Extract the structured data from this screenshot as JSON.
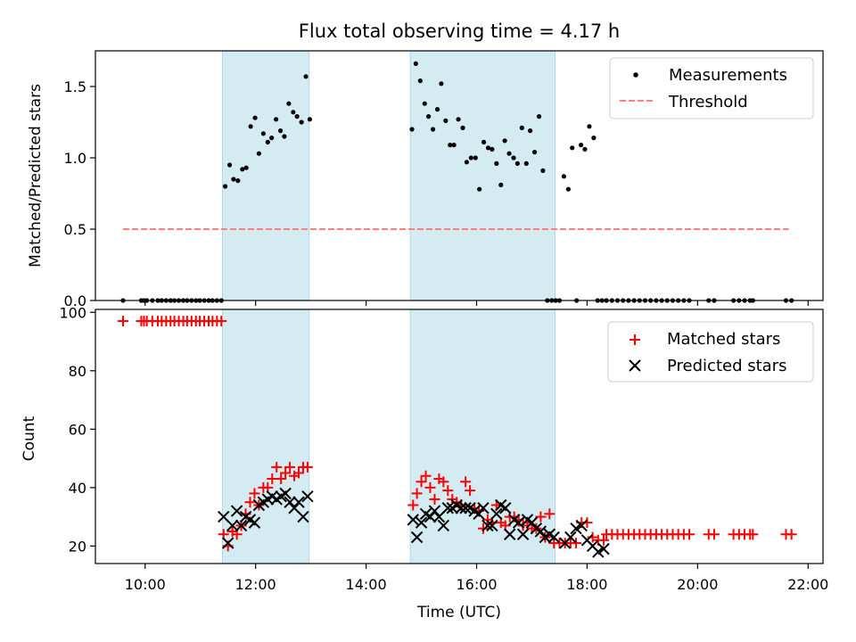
{
  "figure": {
    "title": "Flux total observing time = 4.17 h"
  },
  "chart_data": [
    {
      "type": "scatter",
      "ylabel": "Matched/Predicted stars",
      "xlim": [
        9.1,
        22.27
      ],
      "ylim": [
        0.0,
        1.75
      ],
      "yticks": [
        0.0,
        0.5,
        1.0,
        1.5
      ],
      "ytick_labels": [
        "0.0",
        "0.5",
        "1.0",
        "1.5"
      ],
      "xticks": [
        10,
        12,
        14,
        16,
        18,
        20,
        22
      ],
      "legend_position": "top-right",
      "shaded_spans": [
        [
          11.4,
          12.97
        ],
        [
          14.8,
          17.42
        ]
      ],
      "shade_color": "#add8e6",
      "series": [
        {
          "name": "Measurements",
          "marker": "dot",
          "color": "#000000",
          "x": [
            9.6,
            9.93,
            9.98,
            10.03,
            10.13,
            10.23,
            10.3,
            10.38,
            10.46,
            10.53,
            10.61,
            10.69,
            10.76,
            10.84,
            10.92,
            10.99,
            11.07,
            11.15,
            11.22,
            11.3,
            11.38,
            11.45,
            11.53,
            11.6,
            11.68,
            11.76,
            11.83,
            11.91,
            11.99,
            12.06,
            12.14,
            12.22,
            12.29,
            12.37,
            12.45,
            12.52,
            12.6,
            12.68,
            12.75,
            12.83,
            12.91,
            12.98,
            14.83,
            14.9,
            14.98,
            15.06,
            15.13,
            15.21,
            15.29,
            15.36,
            15.44,
            15.52,
            15.59,
            15.67,
            15.75,
            15.82,
            15.9,
            15.98,
            16.05,
            16.13,
            16.21,
            16.28,
            16.36,
            16.44,
            16.51,
            16.59,
            16.67,
            16.74,
            16.82,
            16.9,
            16.97,
            17.05,
            17.13,
            17.2,
            17.28,
            17.36,
            17.43,
            17.5,
            17.58,
            17.66,
            17.73,
            17.81,
            17.89,
            17.96,
            18.04,
            18.12,
            18.19,
            18.27,
            18.35,
            18.35,
            18.45,
            18.55,
            18.65,
            18.75,
            18.85,
            18.95,
            19.05,
            19.15,
            19.25,
            19.35,
            19.45,
            19.55,
            19.65,
            19.75,
            19.85,
            20.2,
            20.3,
            20.65,
            20.75,
            20.85,
            20.95,
            21.0,
            21.6,
            21.7
          ],
          "y": [
            0,
            0,
            0,
            0,
            0,
            0,
            0,
            0,
            0,
            0,
            0,
            0,
            0,
            0,
            0,
            0,
            0,
            0,
            0,
            0,
            0,
            0.8,
            0.95,
            0.85,
            0.84,
            0.92,
            0.93,
            1.22,
            1.28,
            1.03,
            1.17,
            1.11,
            1.14,
            1.27,
            1.19,
            1.15,
            1.38,
            1.32,
            1.29,
            1.25,
            1.57,
            1.27,
            1.2,
            1.66,
            1.54,
            1.38,
            1.29,
            1.2,
            1.34,
            1.52,
            1.26,
            1.09,
            1.09,
            1.27,
            1.21,
            0.97,
            1.0,
            1.0,
            0.78,
            1.11,
            1.07,
            1.06,
            0.96,
            0.81,
            1.12,
            1.03,
            1.0,
            0.96,
            1.21,
            0.96,
            1.19,
            1.04,
            1.29,
            0.91,
            0,
            0,
            0,
            0,
            0.87,
            0.78,
            1.07,
            0,
            1.09,
            1.06,
            1.22,
            1.14,
            0,
            0,
            0,
            0,
            0,
            0,
            0,
            0,
            0,
            0,
            0,
            0,
            0,
            0,
            0,
            0,
            0,
            0,
            0,
            0,
            0,
            0,
            0,
            0,
            0,
            0,
            0,
            0
          ]
        },
        {
          "name": "Threshold",
          "marker": "dashed-line",
          "color": "#ff7f7f",
          "x": [
            9.6,
            21.65
          ],
          "y": [
            0.5,
            0.5
          ]
        }
      ]
    },
    {
      "type": "scatter",
      "ylabel": "Count",
      "xlabel": "Time (UTC)",
      "xlim": [
        9.1,
        22.27
      ],
      "ylim": [
        14,
        101
      ],
      "yticks": [
        20,
        40,
        60,
        80,
        100
      ],
      "ytick_labels": [
        "20",
        "40",
        "60",
        "80",
        "100"
      ],
      "xticks": [
        10,
        12,
        14,
        16,
        18,
        20,
        22
      ],
      "xtick_labels": [
        "10:00",
        "12:00",
        "14:00",
        "16:00",
        "18:00",
        "20:00",
        "22:00"
      ],
      "legend_position": "top-right",
      "shaded_spans": [
        [
          11.4,
          12.97
        ],
        [
          14.8,
          17.42
        ]
      ],
      "shade_color": "#add8e6",
      "series": [
        {
          "name": "Matched stars",
          "marker": "plus",
          "color": "#ff0000",
          "x": [
            9.6,
            9.93,
            9.98,
            10.03,
            10.13,
            10.23,
            10.3,
            10.38,
            10.46,
            10.53,
            10.61,
            10.69,
            10.76,
            10.84,
            10.92,
            10.99,
            11.07,
            11.15,
            11.22,
            11.3,
            11.38,
            11.42,
            11.5,
            11.58,
            11.66,
            11.74,
            11.82,
            11.9,
            11.98,
            12.06,
            12.14,
            12.22,
            12.3,
            12.38,
            12.46,
            12.54,
            12.62,
            12.7,
            12.78,
            12.86,
            12.94,
            14.85,
            14.92,
            15.0,
            15.08,
            15.16,
            15.24,
            15.32,
            15.4,
            15.48,
            15.56,
            15.64,
            15.72,
            15.8,
            15.88,
            15.96,
            16.04,
            16.12,
            16.2,
            16.28,
            16.36,
            16.44,
            16.52,
            16.6,
            16.68,
            16.76,
            16.84,
            16.92,
            17.0,
            17.08,
            17.16,
            17.24,
            17.32,
            17.4,
            17.5,
            17.6,
            17.7,
            17.8,
            17.9,
            18.0,
            18.1,
            18.2,
            18.3,
            18.35,
            18.45,
            18.55,
            18.65,
            18.75,
            18.85,
            18.95,
            19.05,
            19.15,
            19.25,
            19.35,
            19.45,
            19.55,
            19.65,
            19.75,
            19.85,
            20.2,
            20.3,
            20.65,
            20.75,
            20.85,
            20.95,
            21.0,
            21.6,
            21.7
          ],
          "y": [
            97,
            97,
            97,
            97,
            97,
            97,
            97,
            97,
            97,
            97,
            97,
            97,
            97,
            97,
            97,
            97,
            97,
            97,
            97,
            97,
            97,
            24,
            20,
            25,
            24,
            27,
            31,
            35,
            38,
            34,
            40,
            40,
            43,
            47,
            43,
            45,
            47,
            44,
            45,
            47,
            47,
            34,
            38,
            42,
            44,
            40,
            36,
            43,
            42,
            39,
            36,
            35,
            34,
            42,
            39,
            33,
            32,
            26,
            29,
            28,
            34,
            28,
            27,
            30,
            30,
            29,
            27,
            28,
            26,
            26,
            30,
            23,
            31,
            21,
            21,
            21,
            21,
            21,
            28,
            28,
            23,
            22,
            22,
            24,
            24,
            24,
            24,
            24,
            24,
            24,
            24,
            24,
            24,
            24,
            24,
            24,
            24,
            24,
            24,
            24,
            24,
            24,
            24,
            24,
            24,
            24,
            24,
            24
          ]
        },
        {
          "name": "Predicted stars",
          "marker": "x",
          "color": "#000000",
          "x": [
            11.42,
            11.5,
            11.58,
            11.66,
            11.74,
            11.82,
            11.9,
            11.98,
            12.06,
            12.14,
            12.22,
            12.3,
            12.38,
            12.46,
            12.54,
            12.62,
            12.7,
            12.78,
            12.86,
            12.94,
            14.85,
            14.92,
            15.0,
            15.08,
            15.16,
            15.24,
            15.32,
            15.4,
            15.48,
            15.56,
            15.64,
            15.72,
            15.8,
            15.88,
            15.96,
            16.04,
            16.12,
            16.2,
            16.28,
            16.36,
            16.44,
            16.52,
            16.6,
            16.68,
            16.76,
            16.84,
            16.92,
            17.0,
            17.08,
            17.16,
            17.24,
            17.32,
            17.4,
            17.6,
            17.7,
            17.8,
            17.9,
            18.0,
            18.1,
            18.2,
            18.3
          ],
          "y": [
            30,
            21,
            27,
            32,
            27,
            30,
            29,
            28,
            34,
            35,
            36,
            37,
            36,
            37,
            38,
            35,
            33,
            35,
            30,
            37,
            29,
            23,
            28,
            31,
            30,
            32,
            30,
            27,
            33,
            33,
            34,
            33,
            33,
            33,
            32,
            31,
            33,
            27,
            27,
            31,
            34,
            33,
            24,
            29,
            28,
            24,
            29,
            28,
            26,
            25,
            23,
            24,
            23,
            21,
            23,
            26,
            27,
            22,
            20,
            18,
            19
          ]
        }
      ]
    }
  ]
}
